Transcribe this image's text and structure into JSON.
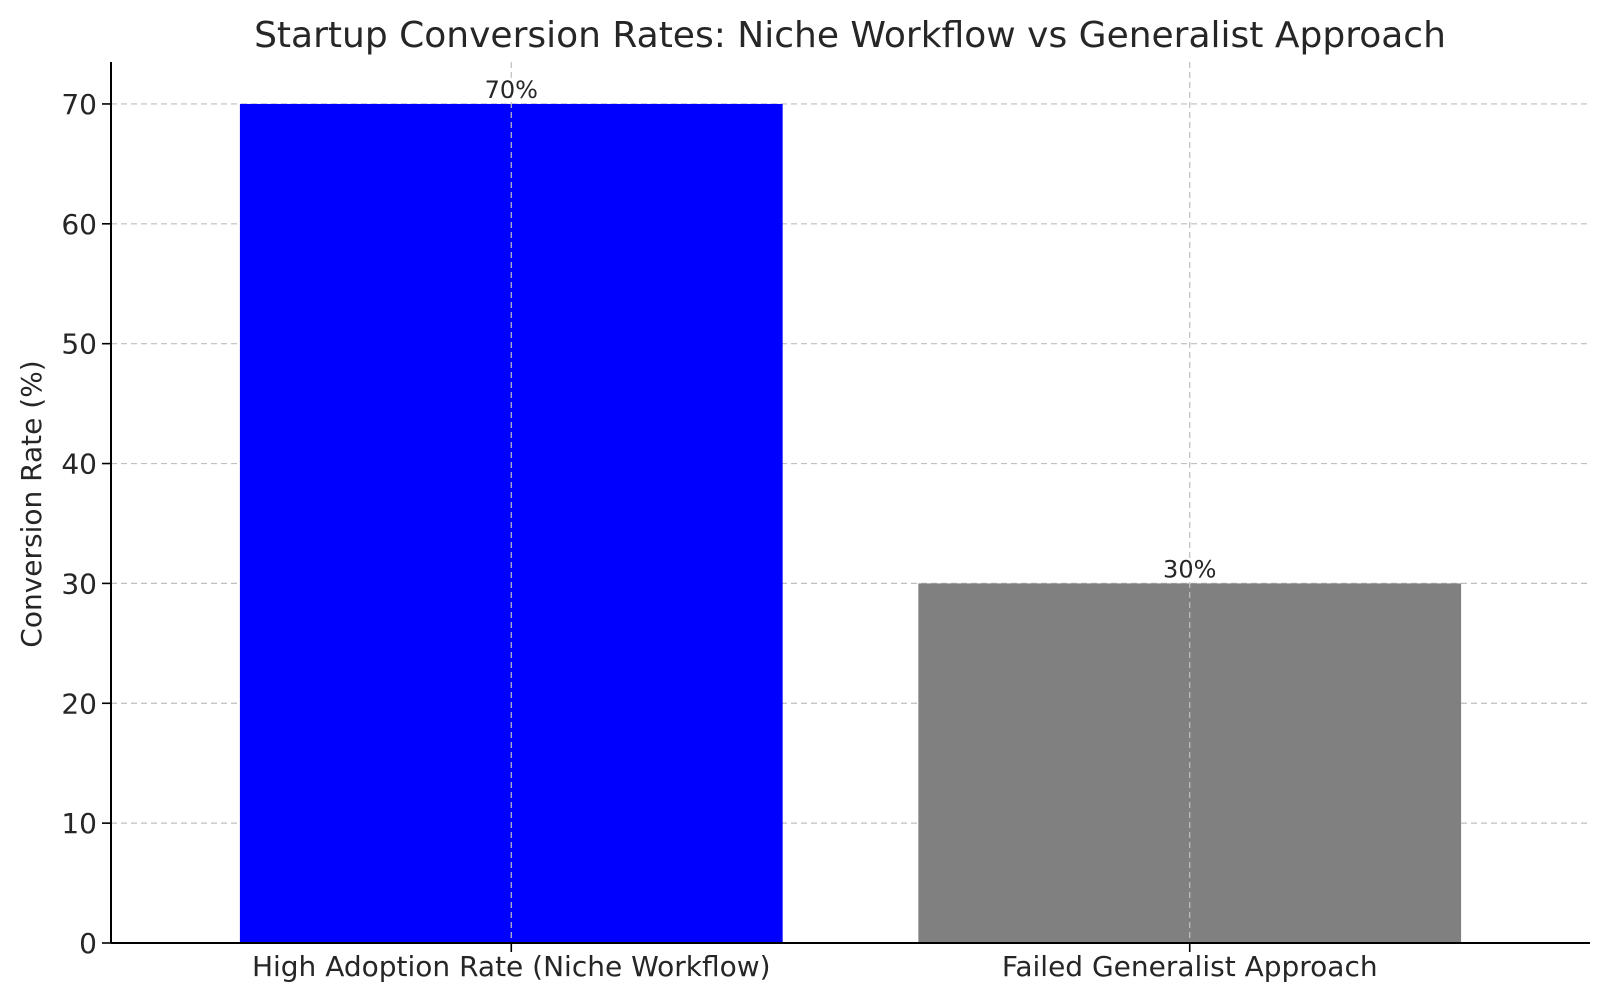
{
  "chart_data": {
    "type": "bar",
    "title": "Startup Conversion Rates: Niche Workflow vs Generalist Approach",
    "xlabel": "",
    "ylabel": "Conversion Rate (%)",
    "categories": [
      "High Adoption Rate (Niche Workflow)",
      "Failed Generalist Approach"
    ],
    "values": [
      70,
      30
    ],
    "value_labels": [
      "70%",
      "30%"
    ],
    "colors": [
      "#0000ff",
      "#808080"
    ],
    "ylim": [
      0,
      73.5
    ],
    "yticks": [
      0,
      10,
      20,
      30,
      40,
      50,
      60,
      70
    ],
    "grid": true
  }
}
